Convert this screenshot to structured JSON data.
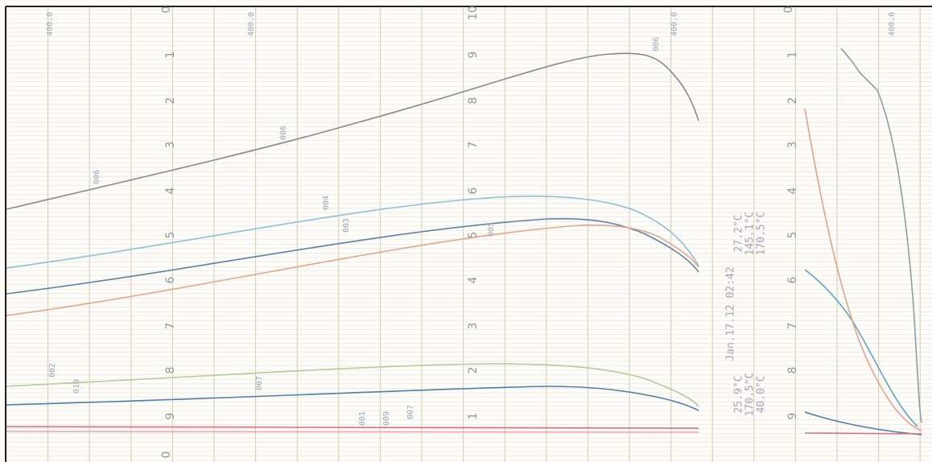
{
  "scales": {
    "left": [
      "1",
      "2",
      "3",
      "4",
      "5",
      "6",
      "7",
      "8",
      "9"
    ],
    "middle": [
      "9",
      "8",
      "7",
      "6",
      "5",
      "4",
      "3",
      "2",
      "1"
    ],
    "right": [
      "1",
      "2",
      "3",
      "4",
      "5",
      "6",
      "7",
      "8",
      "9"
    ],
    "zero": "0",
    "ten": "10"
  },
  "range_tags": [
    "400.0",
    "400.0",
    "400.0",
    "400.0"
  ],
  "trace_tags": [
    "006",
    "006",
    "006",
    "004",
    "003",
    "005",
    "007",
    "010",
    "002",
    "001",
    "009",
    "007"
  ],
  "stamp": "Jan.17.12 02:42",
  "readouts": [
    "25.9°C",
    "170.5°C",
    "40.0°C",
    "27.2°C",
    "145.1°C",
    "170.5°C"
  ]
}
